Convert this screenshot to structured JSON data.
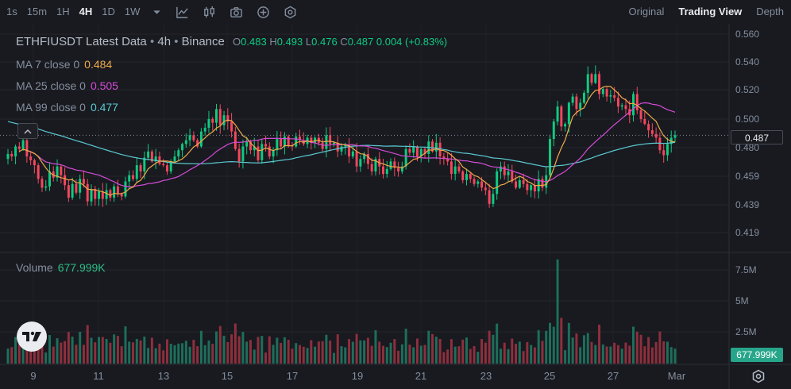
{
  "toolbar": {
    "timeframes": [
      {
        "label": "1s",
        "active": false
      },
      {
        "label": "15m",
        "active": false
      },
      {
        "label": "1H",
        "active": false
      },
      {
        "label": "4H",
        "active": true
      },
      {
        "label": "1D",
        "active": false
      },
      {
        "label": "1W",
        "active": false
      }
    ],
    "icons": [
      "chevron-down-icon",
      "indicator-icon",
      "candle-type-icon",
      "camera-icon",
      "plus-icon",
      "settings-hex-icon"
    ],
    "views": [
      {
        "label": "Original",
        "active": false
      },
      {
        "label": "Trading View",
        "active": true
      },
      {
        "label": "Depth",
        "active": false
      }
    ]
  },
  "legend": {
    "symbol": "ETHFIUSDT Latest Data",
    "sep1": " • ",
    "interval": "4h",
    "sep2": " • ",
    "exchange": "Binance",
    "o_label": "O",
    "o": "0.483",
    "h_label": "H",
    "h": "0.493",
    "l_label": "L",
    "l": "0.476",
    "c_label": "C",
    "c": "0.487",
    "change": "0.004 (+0.83%)"
  },
  "ma": [
    {
      "label": "MA 7 close 0",
      "value": "0.484",
      "color": "#f0a94a"
    },
    {
      "label": "MA 25 close 0",
      "value": "0.505",
      "color": "#d64bd6"
    },
    {
      "label": "MA 99 close 0",
      "value": "0.477",
      "color": "#5cc8d0"
    }
  ],
  "volume": {
    "label": "Volume",
    "value": "677.999K"
  },
  "last_price_tag": "0.487",
  "volume_tag": "677.999K",
  "colors": {
    "up": "#0ecb81",
    "down": "#f6465d",
    "up_vol": "#1d6f5b",
    "down_vol": "#8f2f3d",
    "bg": "#181a20"
  },
  "chart_data": {
    "type": "candlestick",
    "title": "ETHFIUSDT Latest Data • 4h • Binance",
    "price_axis": {
      "ticks": [
        "0.560",
        "0.540",
        "0.520",
        "0.500",
        "0.480",
        "0.459",
        "0.439",
        "0.419"
      ],
      "ylim": [
        0.409,
        0.568
      ]
    },
    "volume_axis": {
      "ticks": [
        "7.5M",
        "5M",
        "2.5M"
      ],
      "ylim": [
        0,
        8.5
      ]
    },
    "x_ticks": [
      "9",
      "11",
      "13",
      "15",
      "17",
      "19",
      "21",
      "23",
      "25",
      "27",
      "Mar"
    ],
    "close": [
      0.472,
      0.47,
      0.478,
      0.476,
      0.483,
      0.47,
      0.467,
      0.463,
      0.452,
      0.445,
      0.446,
      0.458,
      0.453,
      0.462,
      0.455,
      0.447,
      0.437,
      0.448,
      0.441,
      0.452,
      0.448,
      0.434,
      0.444,
      0.436,
      0.442,
      0.436,
      0.443,
      0.437,
      0.446,
      0.44,
      0.438,
      0.45,
      0.455,
      0.452,
      0.463,
      0.458,
      0.469,
      0.474,
      0.466,
      0.47,
      0.464,
      0.463,
      0.458,
      0.466,
      0.47,
      0.475,
      0.48,
      0.483,
      0.487,
      0.483,
      0.478,
      0.49,
      0.493,
      0.5,
      0.497,
      0.508,
      0.495,
      0.503,
      0.498,
      0.49,
      0.476,
      0.466,
      0.478,
      0.482,
      0.475,
      0.478,
      0.467,
      0.48,
      0.478,
      0.47,
      0.475,
      0.484,
      0.478,
      0.486,
      0.479,
      0.478,
      0.486,
      0.483,
      0.48,
      0.485,
      0.481,
      0.485,
      0.481,
      0.476,
      0.487,
      0.48,
      0.481,
      0.474,
      0.478,
      0.479,
      0.47,
      0.474,
      0.462,
      0.468,
      0.472,
      0.464,
      0.458,
      0.468,
      0.462,
      0.456,
      0.46,
      0.466,
      0.461,
      0.458,
      0.462,
      0.476,
      0.473,
      0.478,
      0.47,
      0.476,
      0.472,
      0.482,
      0.474,
      0.481,
      0.47,
      0.468,
      0.466,
      0.456,
      0.462,
      0.458,
      0.451,
      0.456,
      0.452,
      0.448,
      0.45,
      0.445,
      0.443,
      0.432,
      0.44,
      0.458,
      0.462,
      0.455,
      0.458,
      0.45,
      0.445,
      0.451,
      0.448,
      0.443,
      0.447,
      0.442,
      0.452,
      0.445,
      0.455,
      0.484,
      0.498,
      0.51,
      0.494,
      0.496,
      0.513,
      0.518,
      0.508,
      0.513,
      0.521,
      0.536,
      0.529,
      0.536,
      0.52,
      0.524,
      0.518,
      0.519,
      0.517,
      0.51,
      0.511,
      0.508,
      0.503,
      0.52,
      0.507,
      0.5,
      0.496,
      0.491,
      0.488,
      0.485,
      0.475,
      0.471,
      0.48,
      0.485,
      0.487
    ]
  }
}
